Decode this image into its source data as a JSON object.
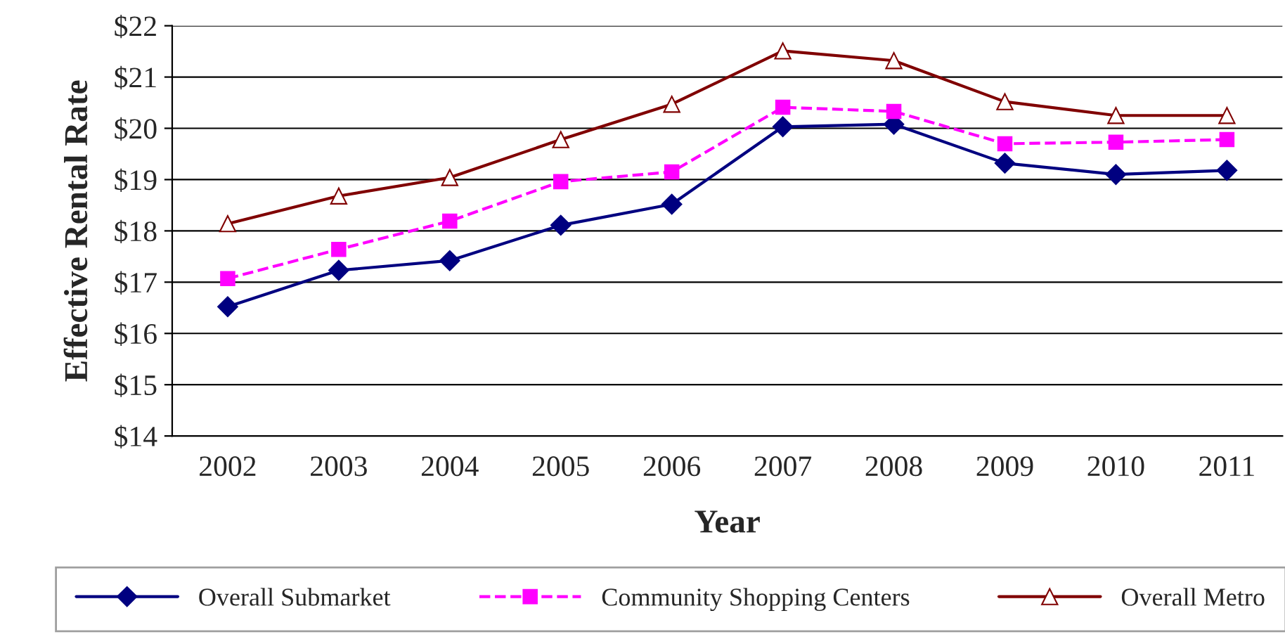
{
  "chart_data": {
    "type": "line",
    "xlabel": "Year",
    "ylabel": "Effective Rental Rate",
    "categories": [
      "2002",
      "2003",
      "2004",
      "2005",
      "2006",
      "2007",
      "2008",
      "2009",
      "2010",
      "2011"
    ],
    "series": [
      {
        "name": "Overall Submarket",
        "color": "#000080",
        "marker": "diamond",
        "line_style": "solid",
        "values": [
          16.52,
          17.23,
          17.42,
          18.11,
          18.52,
          20.03,
          20.08,
          19.32,
          19.1,
          19.18
        ]
      },
      {
        "name": "Community Shopping Centers",
        "color": "#ff00ff",
        "marker": "square",
        "line_style": "dashed",
        "values": [
          17.07,
          17.64,
          18.19,
          18.96,
          19.15,
          20.41,
          20.33,
          19.7,
          19.73,
          19.78
        ]
      },
      {
        "name": "Overall Metro",
        "color": "#800000",
        "marker": "triangle",
        "line_style": "solid",
        "values": [
          18.14,
          18.68,
          19.04,
          19.78,
          20.47,
          21.51,
          21.32,
          20.52,
          20.25,
          20.25
        ]
      }
    ],
    "ylim": [
      14,
      22
    ],
    "yticks": [
      {
        "value": 14,
        "label": "$14"
      },
      {
        "value": 15,
        "label": "$15"
      },
      {
        "value": 16,
        "label": "$16"
      },
      {
        "value": 17,
        "label": "$17"
      },
      {
        "value": 18,
        "label": "$18"
      },
      {
        "value": 19,
        "label": "$19"
      },
      {
        "value": 20,
        "label": "$20"
      },
      {
        "value": 21,
        "label": "$21"
      },
      {
        "value": 22,
        "label": "$22"
      }
    ],
    "grid": "y",
    "legend": "bottom"
  }
}
